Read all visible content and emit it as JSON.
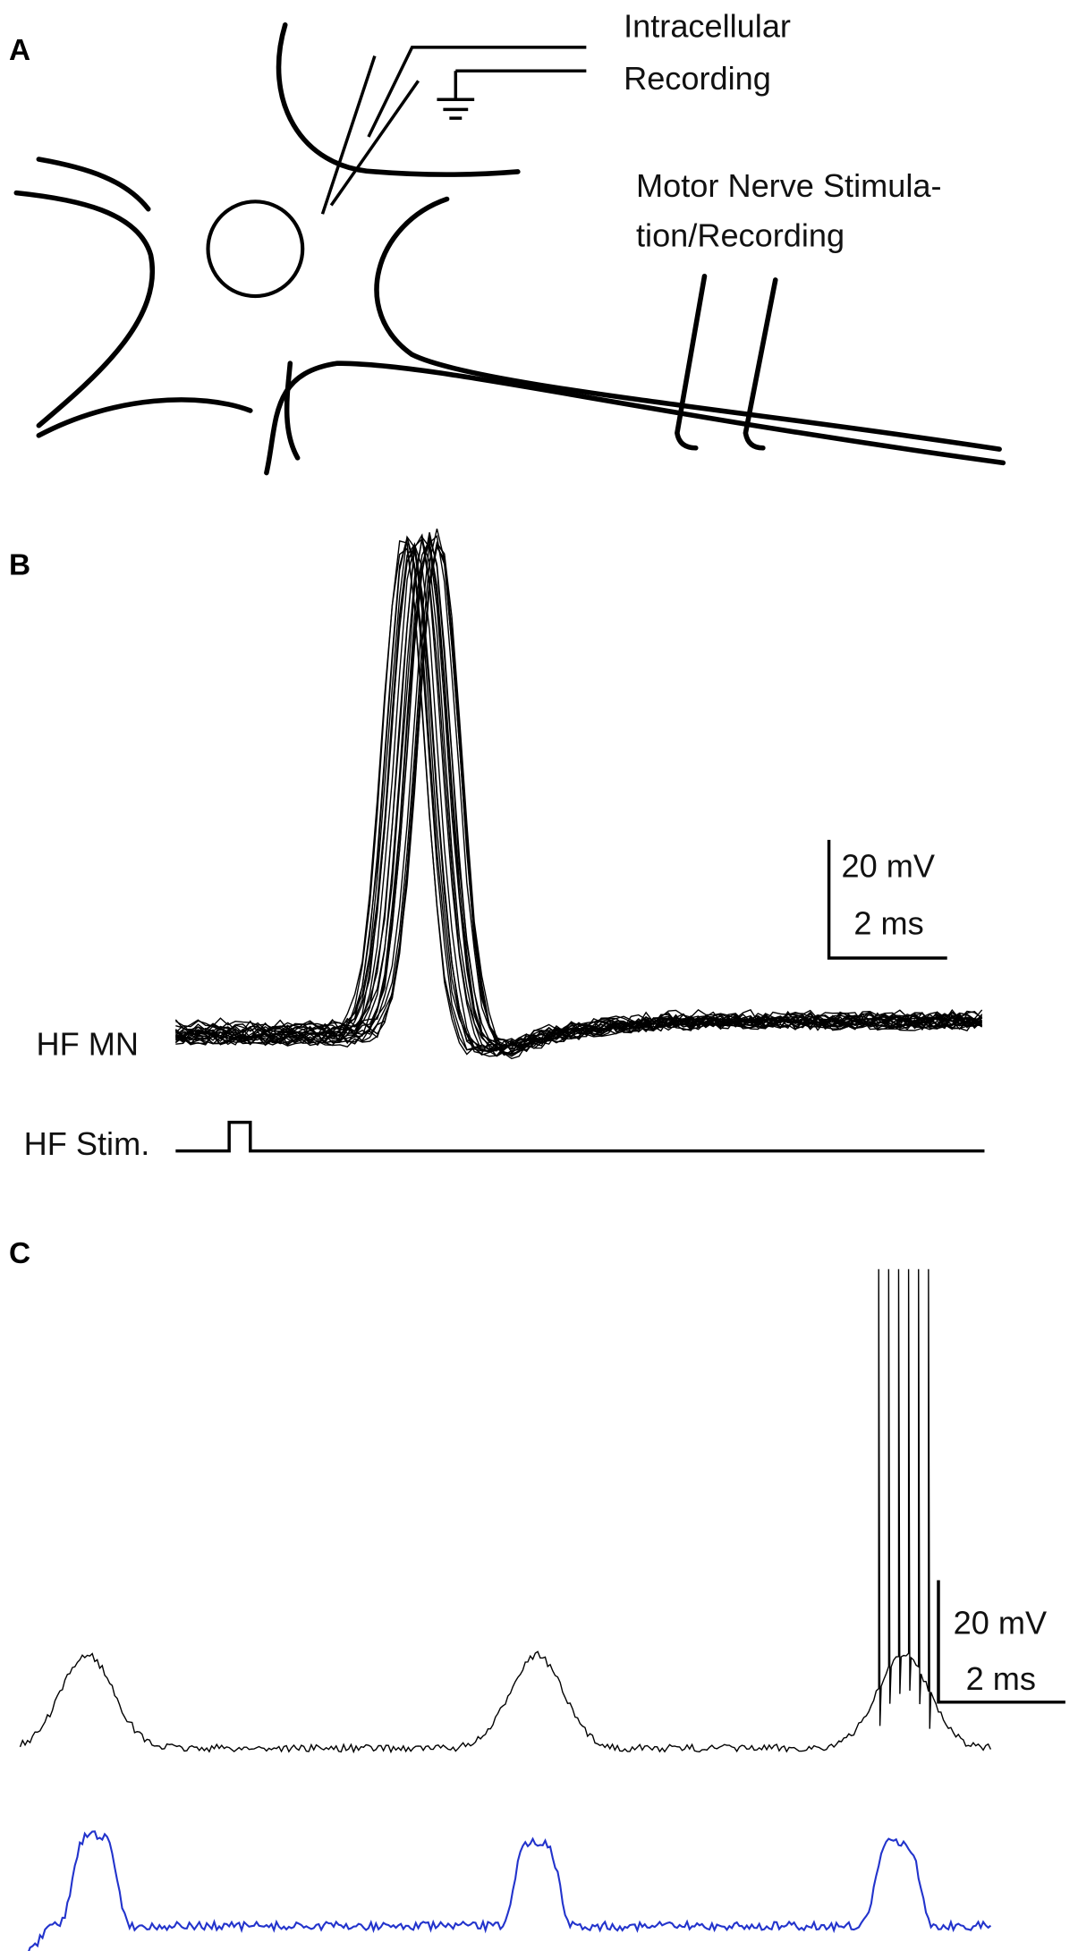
{
  "panel_a": {
    "label": "A",
    "electrode_label": [
      "Intracellular",
      "Recording"
    ],
    "nerve_label": [
      "Motor Nerve  Stimula-",
      "tion/Recording"
    ]
  },
  "panel_b": {
    "label": "B",
    "scale_v": "20 mV",
    "scale_t": "2 ms",
    "trace_label": "HF MN",
    "stim_label": "HF Stim."
  },
  "panel_c": {
    "label": "C",
    "scale_v": "20 mV",
    "scale_t": "2 ms"
  }
}
